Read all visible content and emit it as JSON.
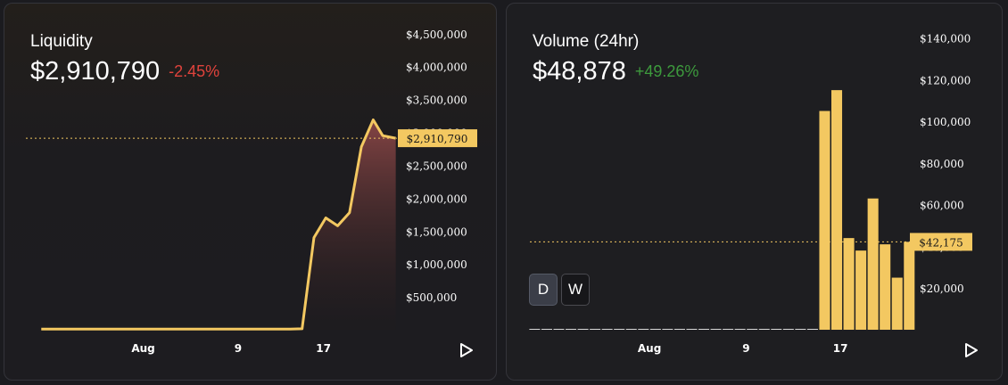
{
  "liquidity": {
    "title": "Liquidity",
    "value": "$2,910,790",
    "change": "-2.45%",
    "price_tag": "$2,910,790"
  },
  "volume": {
    "title": "Volume (24hr)",
    "value": "$48,878",
    "change": "+49.26%",
    "price_tag": "$42,175",
    "toggles": [
      "D",
      "W"
    ]
  },
  "colors": {
    "accent": "#f3c861",
    "negative": "#e0433c",
    "positive": "#3d9a3d",
    "area_top": "#8a4646",
    "area_bottom": "#1f1a1c"
  },
  "icons": {
    "play": "play-triangle-icon"
  },
  "chart_data": [
    {
      "type": "area",
      "title": "Liquidity",
      "ylim": [
        0,
        4700000
      ],
      "y_ticks": [
        500000,
        1000000,
        1500000,
        2000000,
        2500000,
        3000000,
        3500000,
        4000000,
        4500000
      ],
      "y_tick_labels": [
        "$500,000",
        "$1,000,000",
        "$1,500,000",
        "$2,000,000",
        "$2,500,000",
        "$3,000,000",
        "$3,500,000",
        "$4,000,000",
        "$4,500,000"
      ],
      "x_tick_labels": [
        "Aug",
        "9",
        "17"
      ],
      "x_tick_at": [
        8.6,
        16.6,
        23.8
      ],
      "xlim": [
        -1.3,
        29.4
      ],
      "x": [
        0,
        1,
        2,
        3,
        4,
        5,
        6,
        7,
        8,
        9,
        10,
        11,
        12,
        13,
        14,
        15,
        16,
        17,
        18,
        19,
        20,
        21,
        22,
        23,
        24,
        25,
        26,
        27,
        28
      ],
      "values": [
        10000,
        10000,
        10000,
        10000,
        10000,
        10000,
        10000,
        10000,
        10000,
        10000,
        10000,
        10000,
        10000,
        10000,
        10000,
        10000,
        10000,
        10000,
        10000,
        10000,
        10000,
        10000,
        15000,
        1400000,
        1700000,
        1580000,
        1780000,
        2780000,
        3190000
      ],
      "series_tail": [
        2950000,
        2910790
      ],
      "reference_line": 2910790
    },
    {
      "type": "bar",
      "title": "Volume (24hr)",
      "ylim": [
        0,
        145000
      ],
      "y_ticks": [
        20000,
        40000,
        60000,
        80000,
        100000,
        120000,
        140000
      ],
      "y_tick_labels": [
        "$20,000",
        "$40,000",
        "$60,000",
        "$80,000",
        "$100,000",
        "$120,000",
        "$140,000"
      ],
      "x_tick_labels": [
        "Aug",
        "9",
        "17"
      ],
      "x_tick_at": [
        9.5,
        17.5,
        25.3
      ],
      "xlim": [
        -0.4,
        31.2
      ],
      "values": [
        0,
        0,
        0,
        0,
        0,
        0,
        0,
        0,
        0,
        0,
        0,
        0,
        0,
        0,
        0,
        0,
        0,
        0,
        0,
        0,
        0,
        0,
        0,
        0,
        105000,
        115000,
        44000,
        38000,
        63000,
        41000,
        25000,
        42175
      ],
      "reference_line": 42175
    }
  ]
}
